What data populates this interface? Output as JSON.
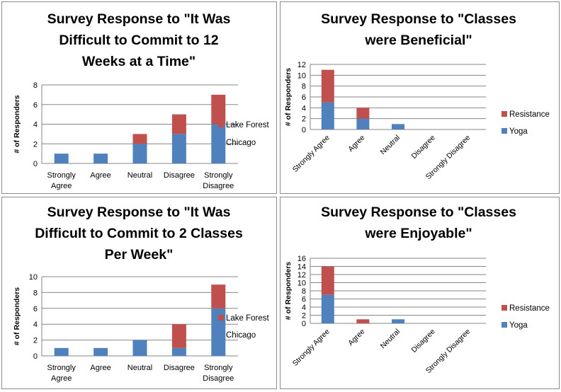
{
  "chart_data": [
    {
      "type": "bar",
      "stacked": true,
      "title": "Survey Response to \"It Was Difficult to Commit to 12 Weeks at a Time\"",
      "title_lines": [
        "Survey Response to \"It Was",
        "Difficult to Commit to 12",
        "Weeks at a Time\""
      ],
      "ylabel": "# of Responders",
      "xlabel": "",
      "ylim": [
        0,
        8
      ],
      "yticks": [
        0,
        2,
        4,
        6,
        8
      ],
      "categories": [
        "Strongly Agree",
        "Agree",
        "Neutral",
        "Disagree",
        "Strongly Disagree"
      ],
      "category_lines": [
        [
          "Strongly",
          "Agree"
        ],
        [
          "Agree"
        ],
        [
          "Neutral"
        ],
        [
          "Disagree"
        ],
        [
          "Strongly",
          "Disagree"
        ]
      ],
      "series": [
        {
          "name": "Chicago",
          "color": "#4f81bd",
          "values": [
            1,
            1,
            2,
            3,
            4
          ]
        },
        {
          "name": "Lake Forest",
          "color": "#c0504d",
          "values": [
            0,
            0,
            1,
            2,
            3
          ]
        }
      ],
      "legend": [
        "Lake Forest",
        "Chicago"
      ],
      "legend_position": "right",
      "rotated_labels": false
    },
    {
      "type": "bar",
      "stacked": true,
      "title": "Survey Response to \"Classes were Beneficial\"",
      "title_lines": [
        "Survey Response to \"Classes",
        "were Beneficial\""
      ],
      "ylabel": "# of Responders",
      "xlabel": "",
      "ylim": [
        0,
        12
      ],
      "yticks": [
        0,
        2,
        4,
        6,
        8,
        10,
        12
      ],
      "categories": [
        "Strongly Agree",
        "Agree",
        "Neutral",
        "Disagree",
        "Strongly Disagree"
      ],
      "category_lines": [
        [
          "Strongly Agree"
        ],
        [
          "Agree"
        ],
        [
          "Neutral"
        ],
        [
          "Disagree"
        ],
        [
          "Strongly Disagree"
        ]
      ],
      "series": [
        {
          "name": "Yoga",
          "color": "#4f81bd",
          "values": [
            5,
            2,
            1,
            0,
            0
          ]
        },
        {
          "name": "Resistance",
          "color": "#c0504d",
          "values": [
            6,
            2,
            0,
            0,
            0
          ]
        }
      ],
      "legend": [
        "Resistance",
        "Yoga"
      ],
      "legend_position": "right",
      "rotated_labels": true
    },
    {
      "type": "bar",
      "stacked": true,
      "title": "Survey Response to \"It Was Difficult to Commit to 2 Classes Per Week\"",
      "title_lines": [
        "Survey Response to \"It Was",
        "Difficult to Commit to 2 Classes",
        "Per Week\""
      ],
      "ylabel": "# of Responders",
      "xlabel": "",
      "ylim": [
        0,
        10
      ],
      "yticks": [
        0,
        2,
        4,
        6,
        8,
        10
      ],
      "categories": [
        "Strongly Agree",
        "Agree",
        "Neutral",
        "Disagree",
        "Strongly Disagree"
      ],
      "category_lines": [
        [
          "Strongly",
          "Agree"
        ],
        [
          "Agree"
        ],
        [
          "Neutral"
        ],
        [
          "Disagree"
        ],
        [
          "Strongly",
          "Disagree"
        ]
      ],
      "series": [
        {
          "name": "Chicago",
          "color": "#4f81bd",
          "values": [
            1,
            1,
            2,
            1,
            6
          ]
        },
        {
          "name": "Lake Forest",
          "color": "#c0504d",
          "values": [
            0,
            0,
            0,
            3,
            3
          ]
        }
      ],
      "legend": [
        "Lake Forest",
        "Chicago"
      ],
      "legend_position": "right",
      "rotated_labels": false
    },
    {
      "type": "bar",
      "stacked": true,
      "title": "Survey Response to \"Classes were Enjoyable\"",
      "title_lines": [
        "Survey Response to \"Classes",
        "were Enjoyable\""
      ],
      "ylabel": "# of Responders",
      "xlabel": "",
      "ylim": [
        0,
        16
      ],
      "yticks": [
        0,
        2,
        4,
        6,
        8,
        10,
        12,
        14,
        16
      ],
      "categories": [
        "Strongly Agree",
        "Agree",
        "Neutral",
        "Disagree",
        "Strongly Disagree"
      ],
      "category_lines": [
        [
          "Strongly Agree"
        ],
        [
          "Agree"
        ],
        [
          "Neutral"
        ],
        [
          "Disagree"
        ],
        [
          "Strongly Disagree"
        ]
      ],
      "series": [
        {
          "name": "Yoga",
          "color": "#4f81bd",
          "values": [
            7,
            0,
            1,
            0,
            0
          ]
        },
        {
          "name": "Resistance",
          "color": "#c0504d",
          "values": [
            7,
            1,
            0,
            0,
            0
          ]
        }
      ],
      "legend": [
        "Resistance",
        "Yoga"
      ],
      "legend_position": "right",
      "rotated_labels": true
    }
  ]
}
